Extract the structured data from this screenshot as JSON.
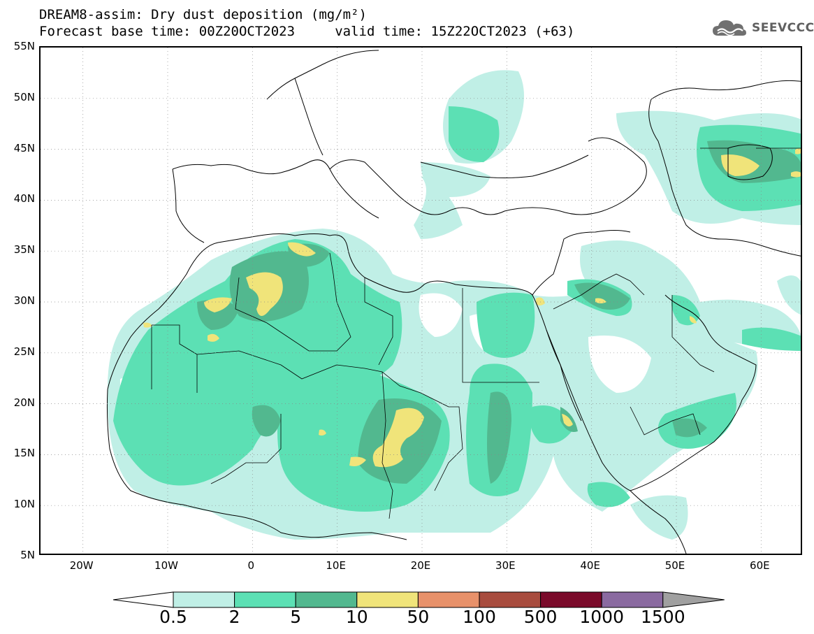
{
  "header": {
    "title_line1": "DREAM8-assim: Dry dust deposition (mg/m²)",
    "title_line2": "Forecast base time: 00Z20OCT2023     valid time: 15Z22OCT2023 (+63)",
    "logo_text": "SEEVCCC",
    "logo_icon": "cloud-logo-icon"
  },
  "map": {
    "lat_labels": [
      "55N",
      "50N",
      "45N",
      "40N",
      "35N",
      "30N",
      "25N",
      "20N",
      "15N",
      "10N",
      "5N"
    ],
    "lon_labels": [
      "20W",
      "10W",
      "0",
      "10E",
      "20E",
      "30E",
      "40E",
      "50E",
      "60E"
    ],
    "extent": {
      "lon_min": -25,
      "lon_max": 65,
      "lat_min": 5,
      "lat_max": 55
    }
  },
  "legend": {
    "levels": [
      "0.5",
      "2",
      "5",
      "10",
      "50",
      "100",
      "500",
      "1000",
      "1500"
    ],
    "colors": [
      "#ffffff",
      "#c0efe6",
      "#5ce0b4",
      "#52b88f",
      "#f0e47a",
      "#e8916a",
      "#a84c3e",
      "#7a0a2a",
      "#8a6aa0",
      "#a0a0a0"
    ]
  }
}
